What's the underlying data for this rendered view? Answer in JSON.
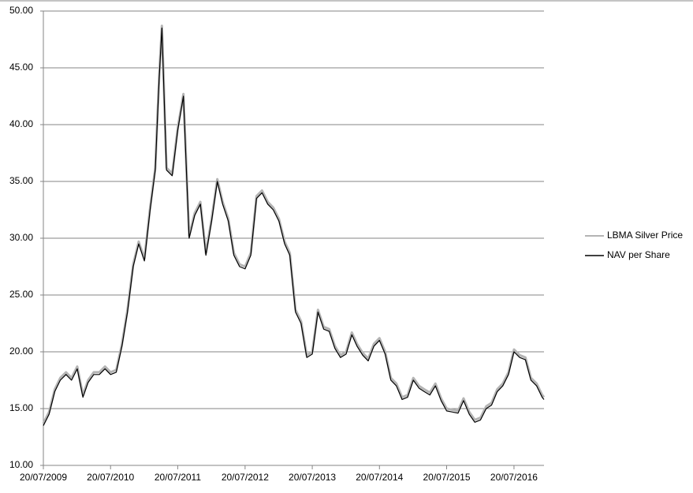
{
  "chart_data": {
    "type": "line",
    "x": [
      "20/07/2009",
      "20/08/2009",
      "20/09/2009",
      "20/10/2009",
      "20/11/2009",
      "20/12/2009",
      "20/01/2010",
      "20/02/2010",
      "20/03/2010",
      "20/04/2010",
      "20/05/2010",
      "20/06/2010",
      "20/07/2010",
      "20/08/2010",
      "20/09/2010",
      "20/10/2010",
      "20/11/2010",
      "20/12/2010",
      "20/01/2011",
      "20/02/2011",
      "20/03/2011",
      "10/04/2011",
      "25/04/2011",
      "20/05/2011",
      "20/06/2011",
      "20/07/2011",
      "20/08/2011",
      "20/09/2011",
      "20/10/2011",
      "20/11/2011",
      "20/12/2011",
      "20/01/2012",
      "20/02/2012",
      "20/03/2012",
      "20/04/2012",
      "20/05/2012",
      "20/06/2012",
      "20/07/2012",
      "20/08/2012",
      "20/09/2012",
      "20/10/2012",
      "20/11/2012",
      "20/12/2012",
      "20/01/2013",
      "20/02/2013",
      "20/03/2013",
      "20/04/2013",
      "20/05/2013",
      "20/06/2013",
      "20/07/2013",
      "20/08/2013",
      "20/09/2013",
      "20/10/2013",
      "20/11/2013",
      "20/12/2013",
      "20/01/2014",
      "20/02/2014",
      "20/03/2014",
      "20/04/2014",
      "20/05/2014",
      "20/06/2014",
      "20/07/2014",
      "20/08/2014",
      "20/09/2014",
      "20/10/2014",
      "20/11/2014",
      "20/12/2014",
      "20/01/2015",
      "20/02/2015",
      "20/03/2015",
      "20/04/2015",
      "20/05/2015",
      "20/06/2015",
      "20/07/2015",
      "20/08/2015",
      "20/09/2015",
      "20/10/2015",
      "20/11/2015",
      "20/12/2015",
      "20/01/2016",
      "20/02/2016",
      "20/03/2016",
      "20/04/2016",
      "20/05/2016",
      "20/06/2016",
      "20/07/2016",
      "20/08/2016",
      "20/09/2016",
      "20/10/2016",
      "20/11/2016",
      "20/12/2016",
      "30/12/2016"
    ],
    "series": [
      {
        "name": "LBMA Silver Price",
        "color": "#b4b4b4",
        "values": [
          13.7,
          14.7,
          16.7,
          17.7,
          18.2,
          17.7,
          18.7,
          16.2,
          17.5,
          18.2,
          18.2,
          18.7,
          18.2,
          18.4,
          20.7,
          23.7,
          27.7,
          29.7,
          28.2,
          32.7,
          36.2,
          44.2,
          48.7,
          36.2,
          35.7,
          39.7,
          42.7,
          30.2,
          32.2,
          33.2,
          28.7,
          31.7,
          35.2,
          33.2,
          31.7,
          28.7,
          27.7,
          27.5,
          28.7,
          33.7,
          34.2,
          33.2,
          32.7,
          31.7,
          29.7,
          28.7,
          23.7,
          22.7,
          19.7,
          20.0,
          23.7,
          22.2,
          22.0,
          20.5,
          19.7,
          20.0,
          21.7,
          20.7,
          19.9,
          19.4,
          20.7,
          21.2,
          20.0,
          17.7,
          17.2,
          16.0,
          16.2,
          17.7,
          17.0,
          16.7,
          16.4,
          17.2,
          15.9,
          15.0,
          14.9,
          14.8,
          15.9,
          14.7,
          14.0,
          14.2,
          15.2,
          15.5,
          16.7,
          17.2,
          18.2,
          20.2,
          19.7,
          19.5,
          17.7,
          17.2,
          16.2,
          16.0
        ]
      },
      {
        "name": "NAV per Share",
        "color": "#000000",
        "values": [
          13.5,
          14.5,
          16.5,
          17.5,
          18.0,
          17.5,
          18.5,
          16.0,
          17.3,
          18.0,
          18.0,
          18.5,
          18.0,
          18.2,
          20.5,
          23.5,
          27.5,
          29.5,
          28.0,
          32.5,
          36.0,
          44.0,
          48.5,
          36.0,
          35.5,
          39.5,
          42.5,
          30.0,
          32.0,
          33.0,
          28.5,
          31.5,
          35.0,
          33.0,
          31.5,
          28.5,
          27.5,
          27.3,
          28.5,
          33.5,
          34.0,
          33.0,
          32.5,
          31.5,
          29.5,
          28.5,
          23.5,
          22.5,
          19.5,
          19.8,
          23.5,
          22.0,
          21.8,
          20.3,
          19.5,
          19.8,
          21.5,
          20.5,
          19.7,
          19.2,
          20.5,
          21.0,
          19.8,
          17.5,
          17.0,
          15.8,
          16.0,
          17.5,
          16.8,
          16.5,
          16.2,
          17.0,
          15.7,
          14.8,
          14.7,
          14.6,
          15.7,
          14.5,
          13.8,
          14.0,
          15.0,
          15.3,
          16.5,
          17.0,
          18.0,
          20.0,
          19.5,
          19.3,
          17.5,
          17.0,
          16.0,
          15.8
        ]
      }
    ],
    "xlim": [
      "20/07/2009",
      "30/12/2016"
    ],
    "xticks": [
      "20/07/2009",
      "20/07/2010",
      "20/07/2011",
      "20/07/2012",
      "20/07/2013",
      "20/07/2014",
      "20/07/2015",
      "20/07/2016"
    ],
    "ylim": [
      10,
      50
    ],
    "yticks": [
      {
        "value": 10,
        "label": "10.00"
      },
      {
        "value": 15,
        "label": "15.00"
      },
      {
        "value": 20,
        "label": "20.00"
      },
      {
        "value": 25,
        "label": "25.00"
      },
      {
        "value": 30,
        "label": "30.00"
      },
      {
        "value": 35,
        "label": "35.00"
      },
      {
        "value": 40,
        "label": "40.00"
      },
      {
        "value": 45,
        "label": "45.00"
      },
      {
        "value": 50,
        "label": "50.00"
      }
    ],
    "grid": true,
    "legend": "right"
  }
}
